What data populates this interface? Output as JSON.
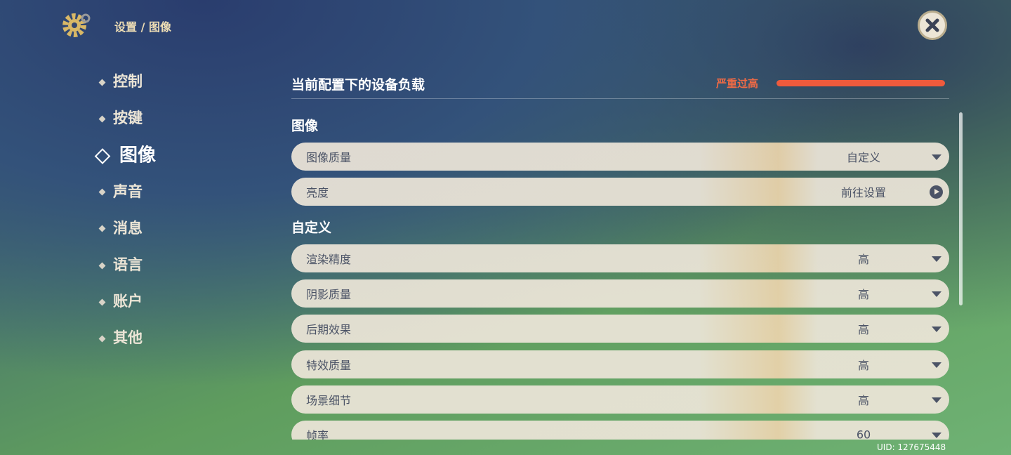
{
  "header": {
    "breadcrumb": "设置 / 图像"
  },
  "nav": {
    "items": [
      "控制",
      "按键",
      "图像",
      "声音",
      "消息",
      "语言",
      "账户",
      "其他"
    ],
    "active": 2
  },
  "load": {
    "label": "当前配置下的设备负载",
    "status": "严重过高"
  },
  "sections": [
    {
      "title": "图像",
      "rows": [
        {
          "label": "图像质量",
          "value": "自定义",
          "control": "dropdown"
        },
        {
          "label": "亮度",
          "value": "前往设置",
          "control": "link"
        }
      ]
    },
    {
      "title": "自定义",
      "rows": [
        {
          "label": "渲染精度",
          "value": "高",
          "control": "dropdown"
        },
        {
          "label": "阴影质量",
          "value": "高",
          "control": "dropdown"
        },
        {
          "label": "后期效果",
          "value": "高",
          "control": "dropdown"
        },
        {
          "label": "特效质量",
          "value": "高",
          "control": "dropdown"
        },
        {
          "label": "场景细节",
          "value": "高",
          "control": "dropdown"
        },
        {
          "label": "帧率",
          "value": "60",
          "control": "dropdown"
        }
      ]
    }
  ],
  "footer": {
    "uid": "UID: 127675448"
  }
}
